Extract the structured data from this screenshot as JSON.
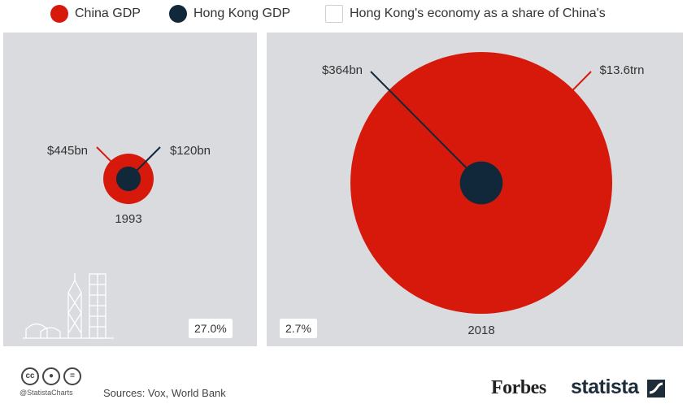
{
  "legend": {
    "items": [
      {
        "label": "China GDP",
        "color": "#d6190b"
      },
      {
        "label": "Hong Kong GDP",
        "color": "#10283a"
      },
      {
        "label": "Hong Kong's economy as a share of China's",
        "color": "#ffffff"
      }
    ]
  },
  "chart_data": {
    "type": "bubble",
    "series": [
      {
        "name": "China GDP",
        "color": "#d6190b"
      },
      {
        "name": "Hong Kong GDP",
        "color": "#10283a"
      }
    ],
    "panels": [
      {
        "year": "1993",
        "china_gdp_bn": 445,
        "hong_kong_gdp_bn": 120,
        "china_label": "$445bn",
        "hong_kong_label": "$120bn",
        "share_label": "27.0%"
      },
      {
        "year": "2018",
        "china_gdp_bn": 13600,
        "hong_kong_gdp_bn": 364,
        "china_label": "$13.6trn",
        "hong_kong_label": "$364bn",
        "share_label": "2.7%"
      }
    ]
  },
  "footer": {
    "handle": "@StatistaCharts",
    "sources": "Sources: Vox, World Bank",
    "forbes": "Forbes",
    "statista": "statista"
  },
  "icons": [
    "cc-icon",
    "attribution-icon",
    "no-derivatives-icon",
    "skyline-icon",
    "statista-logo-icon"
  ]
}
